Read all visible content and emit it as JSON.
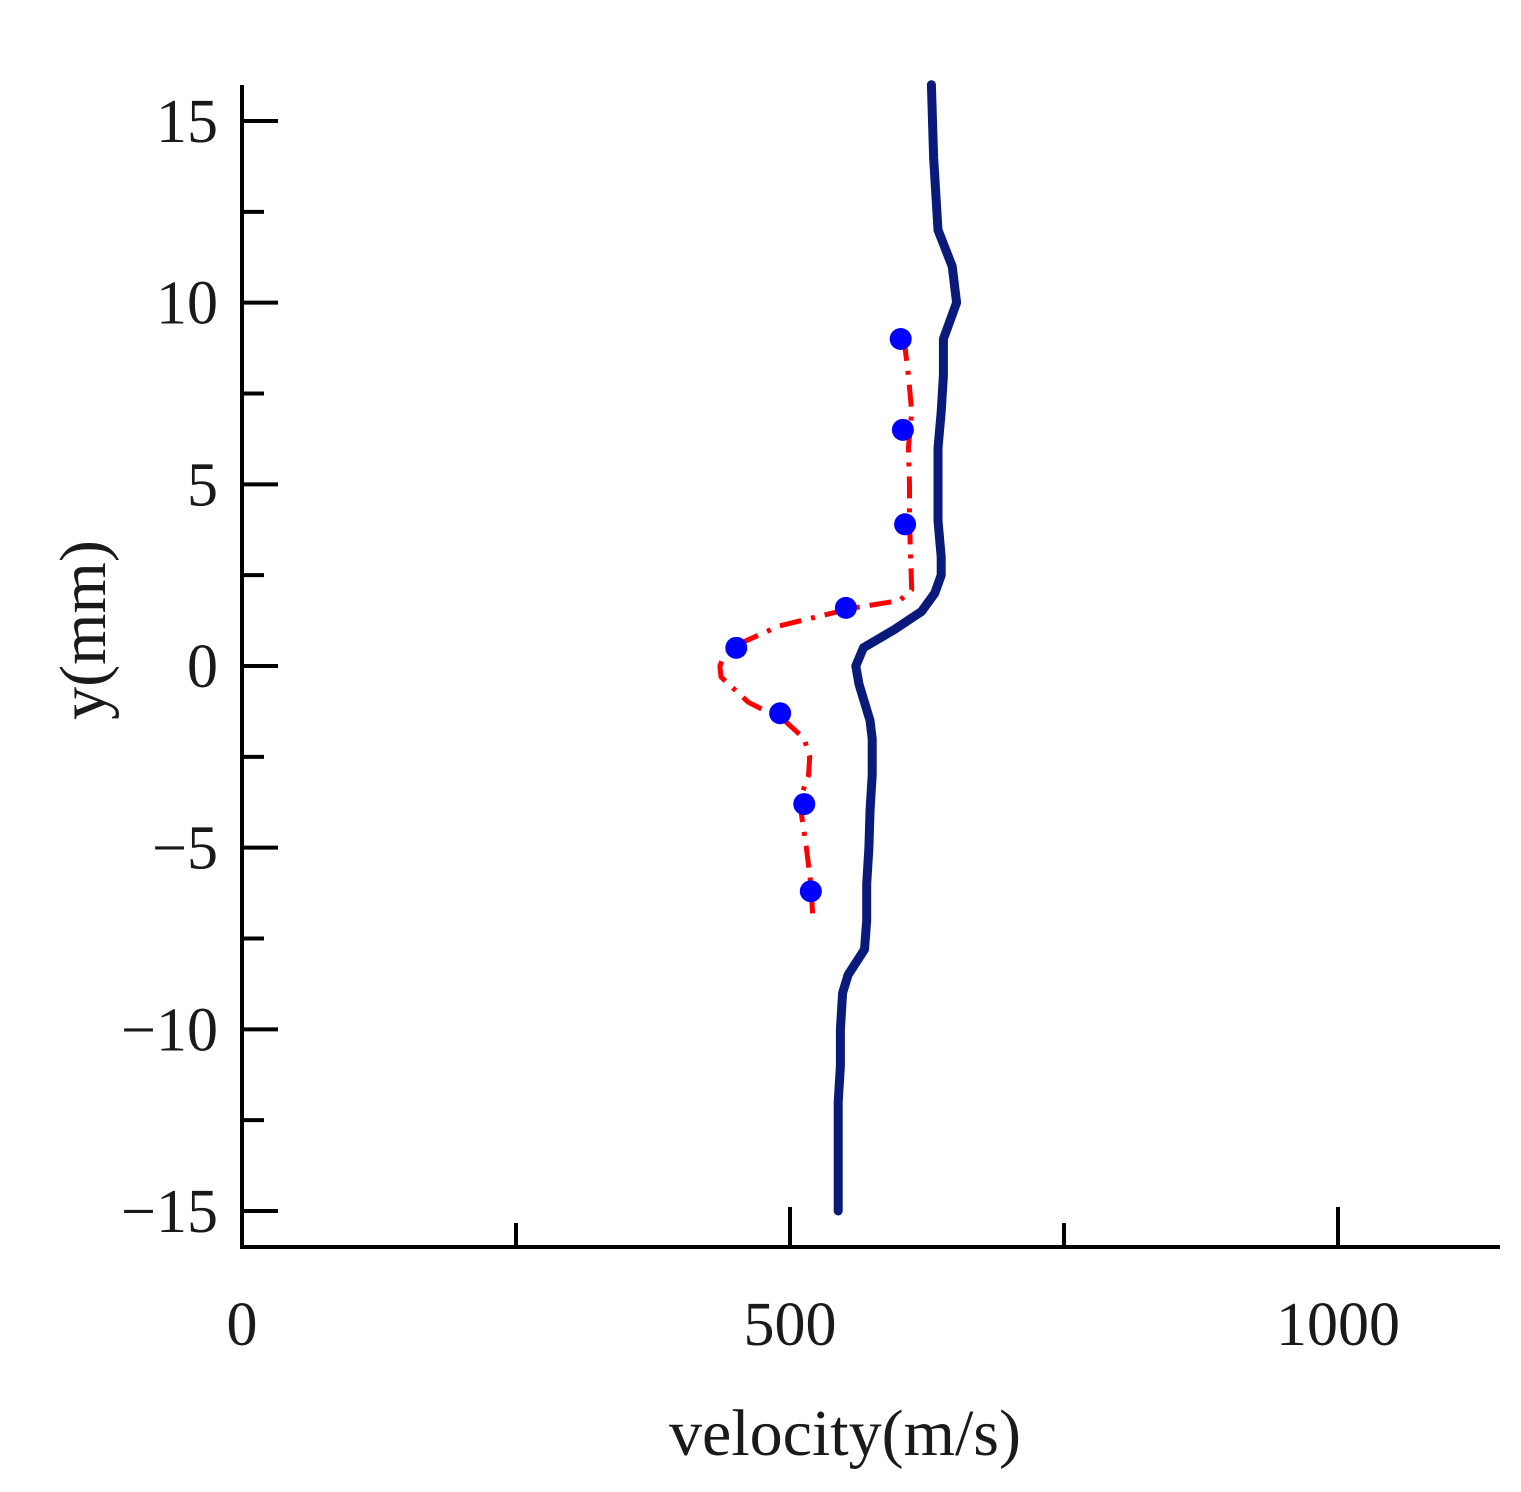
{
  "chart_data": {
    "type": "line",
    "title": "",
    "xlabel": "velocity(m/s)",
    "ylabel": "y(mm)",
    "xlim": [
      0,
      1150
    ],
    "ylim": [
      -16,
      16
    ],
    "x_tick_labels": [
      {
        "value": 0,
        "label": "0"
      },
      {
        "value": 500,
        "label": "500"
      },
      {
        "value": 1000,
        "label": "1000"
      }
    ],
    "x_minor_ticks": [
      250,
      750
    ],
    "y_tick_labels": [
      {
        "value": 15,
        "label": "15"
      },
      {
        "value": 10,
        "label": "10"
      },
      {
        "value": 5,
        "label": "5"
      },
      {
        "value": 0,
        "label": "0"
      },
      {
        "value": -5,
        "label": "−5"
      },
      {
        "value": -10,
        "label": "−10"
      },
      {
        "value": -15,
        "label": "−15"
      }
    ],
    "y_minor_ticks": [
      12.5,
      7.5,
      2.5,
      -2.5,
      -7.5,
      -12.5
    ],
    "grid": false,
    "series": [
      {
        "name": "solid-curve",
        "style": "solid",
        "color": "#0a1a7a",
        "points": [
          [
            629,
            16
          ],
          [
            631,
            14
          ],
          [
            635,
            12
          ],
          [
            648,
            11
          ],
          [
            652,
            10
          ],
          [
            640,
            9
          ],
          [
            640,
            8
          ],
          [
            638,
            7
          ],
          [
            635,
            6
          ],
          [
            635,
            5
          ],
          [
            635,
            4
          ],
          [
            638,
            3
          ],
          [
            638,
            2.5
          ],
          [
            632,
            2
          ],
          [
            620,
            1.5
          ],
          [
            595,
            1
          ],
          [
            567,
            0.5
          ],
          [
            560,
            0
          ],
          [
            563,
            -0.5
          ],
          [
            573,
            -1.5
          ],
          [
            575,
            -2
          ],
          [
            575,
            -3
          ],
          [
            573,
            -4
          ],
          [
            572,
            -5
          ],
          [
            570,
            -6
          ],
          [
            570,
            -7
          ],
          [
            568,
            -7.8
          ],
          [
            553,
            -8.5
          ],
          [
            548,
            -9
          ],
          [
            546,
            -10
          ],
          [
            546,
            -11
          ],
          [
            544,
            -12
          ],
          [
            544,
            -13
          ],
          [
            544,
            -14
          ],
          [
            544,
            -15
          ]
        ]
      },
      {
        "name": "dash-dot-curve",
        "style": "dash-dot",
        "color": "#ff0000",
        "points": [
          [
            604,
            9
          ],
          [
            608,
            8
          ],
          [
            611,
            7
          ],
          [
            608,
            6
          ],
          [
            609,
            5
          ],
          [
            609,
            4
          ],
          [
            610,
            3
          ],
          [
            611,
            2.1
          ],
          [
            600,
            1.8
          ],
          [
            558,
            1.6
          ],
          [
            490,
            1.1
          ],
          [
            453,
            0.6
          ],
          [
            440,
            0.3
          ],
          [
            436,
            0
          ],
          [
            437,
            -0.3
          ],
          [
            462,
            -1
          ],
          [
            495,
            -1.5
          ],
          [
            513,
            -2
          ],
          [
            518,
            -2.5
          ],
          [
            517,
            -3
          ],
          [
            511,
            -3.5
          ],
          [
            510,
            -4
          ],
          [
            515,
            -5
          ],
          [
            519,
            -6
          ],
          [
            521,
            -7
          ]
        ]
      },
      {
        "name": "points",
        "style": "markers",
        "color": "#0000ff",
        "points": [
          [
            601,
            9
          ],
          [
            603,
            6.5
          ],
          [
            605,
            3.9
          ],
          [
            551,
            1.6
          ],
          [
            451,
            0.5
          ],
          [
            491,
            -1.3
          ],
          [
            513,
            -3.8
          ],
          [
            519,
            -6.2
          ]
        ]
      }
    ]
  }
}
